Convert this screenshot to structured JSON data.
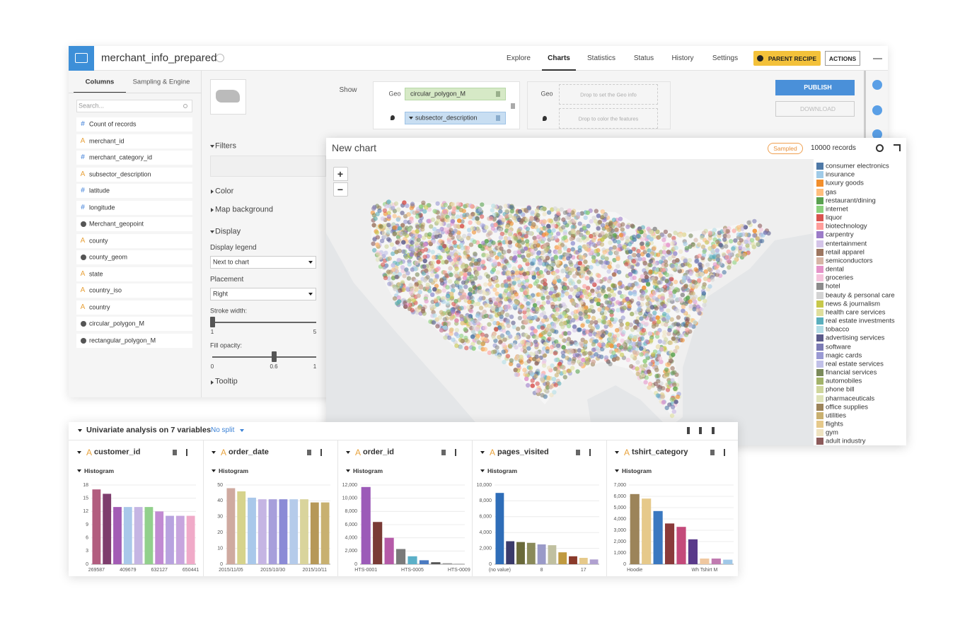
{
  "header": {
    "title": "merchant_info_prepared",
    "nav": [
      "Explore",
      "Charts",
      "Statistics",
      "Status",
      "History",
      "Settings"
    ],
    "active_nav": 1,
    "parent_recipe": "PARENT RECIPE",
    "actions": "ACTIONS"
  },
  "sidebar": {
    "tabs": [
      "Columns",
      "Sampling & Engine"
    ],
    "active_tab": 0,
    "search_placeholder": "Search...",
    "type_icons": {
      "number": "#",
      "text": "A"
    },
    "columns": [
      {
        "type": "number",
        "name": "Count of records"
      },
      {
        "type": "text",
        "name": "merchant_id"
      },
      {
        "type": "number",
        "name": "merchant_category_id"
      },
      {
        "type": "text",
        "name": "subsector_description"
      },
      {
        "type": "number",
        "name": "latitude"
      },
      {
        "type": "number",
        "name": "longitude"
      },
      {
        "type": "geo",
        "name": "Merchant_geopoint"
      },
      {
        "type": "text",
        "name": "county"
      },
      {
        "type": "geo",
        "name": "county_geom"
      },
      {
        "type": "text",
        "name": "state"
      },
      {
        "type": "text",
        "name": "country_iso"
      },
      {
        "type": "text",
        "name": "country"
      },
      {
        "type": "geo",
        "name": "circular_polygon_M"
      },
      {
        "type": "geo",
        "name": "rectangular_polygon_M"
      }
    ]
  },
  "chart_builder": {
    "show_label": "Show",
    "geo_label": "Geo",
    "geo_field": "circular_polygon_M",
    "color_field": "subsector_description",
    "geo_label_2": "Geo",
    "geo_drop_hint": "Drop to set the Geo info",
    "color_drop_hint": "Drop to color the features",
    "publish": "PUBLISH",
    "download": "DOWNLOAD"
  },
  "options": {
    "filters": "Filters",
    "color": "Color",
    "map_background": "Map background",
    "display": "Display",
    "display_legend_label": "Display legend",
    "display_legend": "Next to chart",
    "placement_label": "Placement",
    "placement": "Right",
    "stroke_width": {
      "label": "Stroke width:",
      "min": 1,
      "max": 5,
      "value": 1
    },
    "fill_opacity": {
      "label": "Fill opacity:",
      "min": 0,
      "max": 1,
      "value": 0.6
    },
    "tooltip": "Tooltip"
  },
  "chart": {
    "title": "New chart",
    "badge": "Sampled",
    "records": "10000 records",
    "zoom_in": "+",
    "zoom_out": "−",
    "legend": [
      {
        "name": "consumer electronics",
        "color": "#4e79a7"
      },
      {
        "name": "insurance",
        "color": "#a0cbe8"
      },
      {
        "name": "luxury goods",
        "color": "#f28e2b"
      },
      {
        "name": "gas",
        "color": "#ffbe7d"
      },
      {
        "name": "restaurant/dining",
        "color": "#59a14f"
      },
      {
        "name": "internet",
        "color": "#8cd17d"
      },
      {
        "name": "liquor",
        "color": "#d9534f"
      },
      {
        "name": "biotechnology",
        "color": "#ff9d9a"
      },
      {
        "name": "carpentry",
        "color": "#9c7cc9"
      },
      {
        "name": "entertainment",
        "color": "#d4c4e8"
      },
      {
        "name": "retail apparel",
        "color": "#9d7660"
      },
      {
        "name": "semiconductors",
        "color": "#d7b5a6"
      },
      {
        "name": "dental",
        "color": "#e493c9"
      },
      {
        "name": "groceries",
        "color": "#f5c3dc"
      },
      {
        "name": "hotel",
        "color": "#8c8c8c"
      },
      {
        "name": "beauty & personal care",
        "color": "#d3d3d3"
      },
      {
        "name": "news & journalism",
        "color": "#c7c84a"
      },
      {
        "name": "health care services",
        "color": "#e0df9c"
      },
      {
        "name": "real estate investments",
        "color": "#5aafbd"
      },
      {
        "name": "tobacco",
        "color": "#b2dde6"
      },
      {
        "name": "advertising services",
        "color": "#5a5a8a"
      },
      {
        "name": "software",
        "color": "#7b7bb5"
      },
      {
        "name": "magic cards",
        "color": "#9a9ad4"
      },
      {
        "name": "real estate services",
        "color": "#c0c0e8"
      },
      {
        "name": "financial services",
        "color": "#7a8a5a"
      },
      {
        "name": "automobiles",
        "color": "#a2b36a"
      },
      {
        "name": "phone bill",
        "color": "#cfd69c"
      },
      {
        "name": "pharmaceuticals",
        "color": "#dfe3b8"
      },
      {
        "name": "office supplies",
        "color": "#9c845a"
      },
      {
        "name": "utilities",
        "color": "#c9b06f"
      },
      {
        "name": "flights",
        "color": "#e6c98a"
      },
      {
        "name": "gym",
        "color": "#efe3c0"
      },
      {
        "name": "adult industry",
        "color": "#8c5a5a"
      }
    ]
  },
  "univariate": {
    "title": "Univariate analysis on 7 variables",
    "split": "No split",
    "section_label": "Histogram",
    "panels": [
      {
        "name": "customer_id",
        "type": "text",
        "chart": {
          "type": "bar",
          "categories": [
            "269587",
            null,
            null,
            "409679",
            null,
            null,
            "632127",
            null,
            null,
            "650441"
          ],
          "values": [
            17,
            16,
            13,
            13,
            13,
            13,
            12,
            11,
            11,
            11
          ],
          "colors": [
            "#b25d7f",
            "#7e3d6d",
            "#a35cb5",
            "#a9c8ea",
            "#c5b5e3",
            "#92d08c",
            "#c18ad2",
            "#b8a3df",
            "#c7a5de",
            "#f0aac8"
          ],
          "ylim": [
            0,
            18
          ],
          "yticks": [
            0,
            3,
            6,
            9,
            12,
            15,
            18
          ]
        }
      },
      {
        "name": "order_date",
        "type": "text",
        "chart": {
          "type": "bar",
          "categories": [
            "2015/11/05",
            null,
            null,
            null,
            "2015/10/30",
            null,
            null,
            null,
            "2015/10/11",
            null
          ],
          "values": [
            48,
            46,
            42,
            41,
            41,
            41,
            41,
            41,
            39,
            39
          ],
          "colors": [
            "#cfaaa0",
            "#d6d38c",
            "#a9c8ea",
            "#c5b5e3",
            "#a79fdb",
            "#8b8bd6",
            "#b5cbea",
            "#d9d49c",
            "#b69858",
            "#c8b070"
          ],
          "ylim": [
            0,
            50
          ],
          "yticks": [
            0,
            10,
            20,
            30,
            40,
            50
          ]
        }
      },
      {
        "name": "order_id",
        "type": "text",
        "chart": {
          "type": "bar",
          "categories": [
            "HTS-0001",
            null,
            null,
            null,
            "HTS-0005",
            null,
            null,
            null,
            "HTS-0009"
          ],
          "values": [
            11700,
            6400,
            4000,
            2300,
            1200,
            600,
            300,
            150,
            100
          ],
          "colors": [
            "#9c5bb8",
            "#7a3b36",
            "#b55aa8",
            "#7a7a7a",
            "#5bb0c8",
            "#4a7ac0",
            "#555555",
            "#999999",
            "#bbbbbb"
          ],
          "ylim": [
            0,
            12000
          ],
          "yticks": [
            0,
            {
              "value": 2000,
              "label": "2,000"
            },
            {
              "value": 4000,
              "label": "4,000"
            },
            {
              "value": 6000,
              "label": "6,000"
            },
            {
              "value": 8000,
              "label": "8,000"
            },
            {
              "value": 10000,
              "label": "10,000"
            },
            {
              "value": 12000,
              "label": "12,000"
            }
          ]
        }
      },
      {
        "name": "pages_visited",
        "type": "text",
        "chart": {
          "type": "bar",
          "categories": [
            "(no value)",
            null,
            null,
            null,
            "8",
            null,
            null,
            null,
            "17",
            null
          ],
          "values": [
            9000,
            2900,
            2800,
            2700,
            2500,
            2400,
            1500,
            1000,
            800,
            600
          ],
          "colors": [
            "#2e6db8",
            "#3a3a6a",
            "#6a6a3a",
            "#8a8a5a",
            "#9a9ac8",
            "#c0c0a0",
            "#c09a40",
            "#8a3a2a",
            "#e6c98a",
            "#b0a0d0"
          ],
          "ylim": [
            0,
            10000
          ],
          "yticks": [
            0,
            {
              "value": 2000,
              "label": "2,000"
            },
            {
              "value": 4000,
              "label": "4,000"
            },
            {
              "value": 6000,
              "label": "6,000"
            },
            {
              "value": 8000,
              "label": "8,000"
            },
            {
              "value": 10000,
              "label": "10,000"
            }
          ]
        }
      },
      {
        "name": "tshirt_category",
        "type": "text",
        "chart": {
          "type": "bar",
          "categories": [
            "Hoodie",
            null,
            null,
            null,
            null,
            null,
            "Wh Tshirt M",
            null,
            null
          ],
          "values": [
            6200,
            5800,
            4700,
            3600,
            3300,
            2200,
            500,
            500,
            400
          ],
          "colors": [
            "#9c845a",
            "#e6c98a",
            "#3a78c0",
            "#8a3a3a",
            "#c44a7a",
            "#5a3a8a",
            "#f0c8a0",
            "#c07ab0",
            "#a0c8e8"
          ],
          "ylim": [
            0,
            7000
          ],
          "yticks": [
            0,
            {
              "value": 1000,
              "label": "1,000"
            },
            {
              "value": 2000,
              "label": "2,000"
            },
            {
              "value": 3000,
              "label": "3,000"
            },
            {
              "value": 4000,
              "label": "4,000"
            },
            {
              "value": 5000,
              "label": "5,000"
            },
            {
              "value": 6000,
              "label": "6,000"
            },
            {
              "value": 7000,
              "label": "7,000"
            }
          ]
        }
      }
    ]
  }
}
